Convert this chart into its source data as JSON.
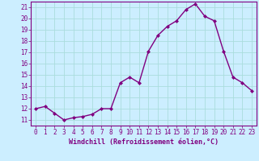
{
  "x": [
    0,
    1,
    2,
    3,
    4,
    5,
    6,
    7,
    8,
    9,
    10,
    11,
    12,
    13,
    14,
    15,
    16,
    17,
    18,
    19,
    20,
    21,
    22,
    23
  ],
  "y": [
    12.0,
    12.2,
    11.6,
    11.0,
    11.2,
    11.3,
    11.5,
    12.0,
    12.0,
    14.3,
    14.8,
    14.3,
    17.1,
    18.5,
    19.3,
    19.8,
    20.8,
    21.3,
    20.2,
    19.8,
    17.1,
    14.8,
    14.3,
    13.6
  ],
  "line_color": "#800080",
  "marker": "D",
  "marker_size": 2.0,
  "bg_color": "#cceeff",
  "grid_color": "#aadddd",
  "xlabel": "Windchill (Refroidissement éolien,°C)",
  "xlabel_color": "#800080",
  "tick_color": "#800080",
  "ylim": [
    10.5,
    21.5
  ],
  "yticks": [
    11,
    12,
    13,
    14,
    15,
    16,
    17,
    18,
    19,
    20,
    21
  ],
  "xticks": [
    0,
    1,
    2,
    3,
    4,
    5,
    6,
    7,
    8,
    9,
    10,
    11,
    12,
    13,
    14,
    15,
    16,
    17,
    18,
    19,
    20,
    21,
    22,
    23
  ],
  "spine_color": "#800080",
  "tick_fontsize": 5.5,
  "xlabel_fontsize": 6.0,
  "linewidth": 1.0
}
